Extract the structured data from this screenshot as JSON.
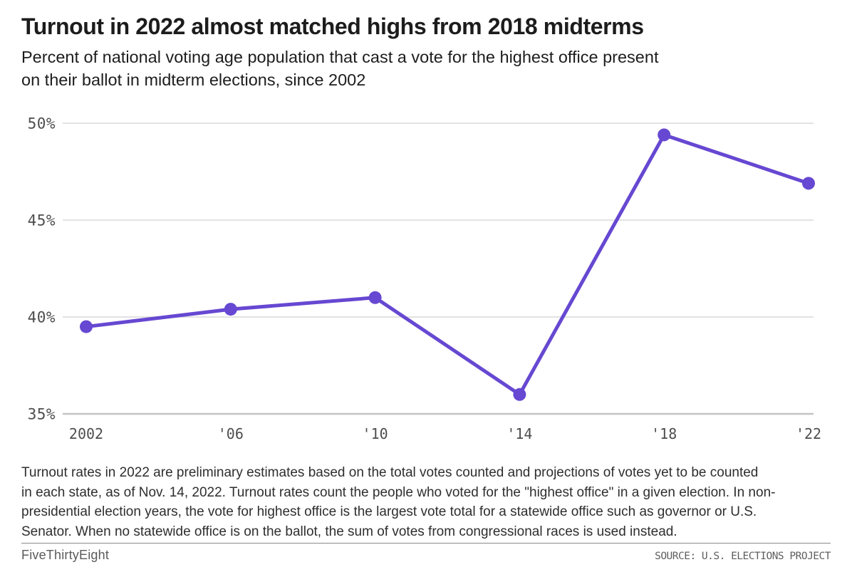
{
  "chart_data": {
    "type": "line",
    "title": "Turnout in 2022 almost matched highs from 2018 midterms",
    "subtitle_lines": [
      "Percent of national voting age population that cast a vote for the highest office present",
      "on their ballot in midterm elections, since 2002"
    ],
    "categories": [
      "2002",
      "'06",
      "'10",
      "'14",
      "'18",
      "'22"
    ],
    "values": [
      39.5,
      40.4,
      41.0,
      36.0,
      49.4,
      46.9
    ],
    "ylim": [
      35,
      50
    ],
    "y_ticks": [
      50,
      45,
      40,
      35
    ],
    "y_tick_labels": [
      "50%",
      "45%",
      "40%",
      "35%"
    ],
    "xlabel": "",
    "ylabel": "",
    "grid": "horizontal",
    "legend_position": "none",
    "line_color": "#6648d2",
    "point_color": "#6648d2",
    "gridline_color": "#d9d9d9",
    "baseline_color": "#c4c4c4"
  },
  "footnote_lines": [
    "Turnout rates in 2022 are preliminary estimates based on the total votes counted and projections of votes yet to be counted",
    "in each state, as of Nov. 14, 2022. Turnout rates count the people who voted for the \"highest office\" in a given election. In non-",
    "presidential election years, the vote for highest office is the largest vote total for a statewide office such as governor or U.S.",
    "Senator. When no statewide office is on the ballot, the sum of votes from congressional races is used instead."
  ],
  "footer": {
    "brand": "FiveThirtyEight",
    "source": "SOURCE: U.S. ELECTIONS PROJECT"
  }
}
